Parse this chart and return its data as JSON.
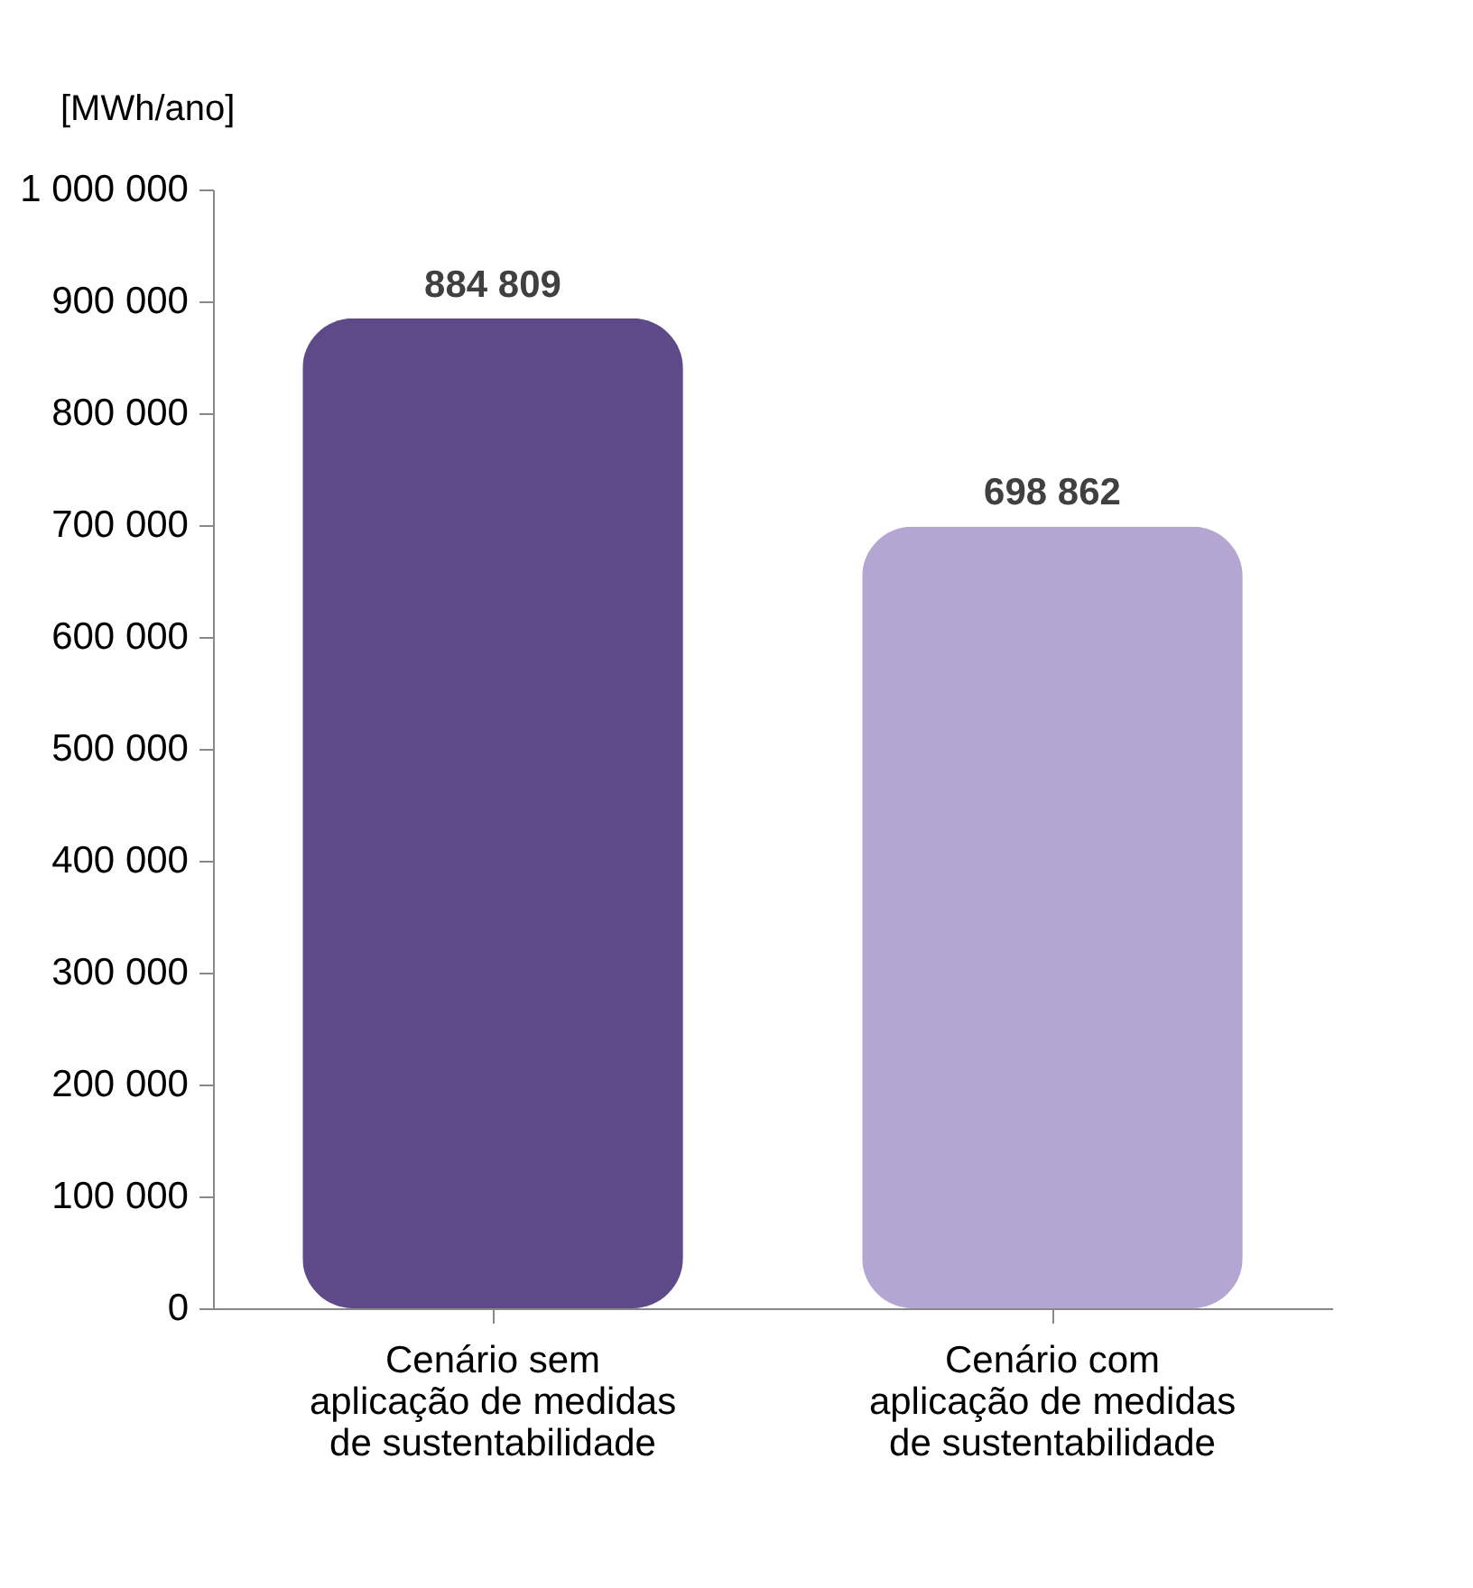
{
  "chart_data": {
    "type": "bar",
    "ylabel": "[MWh/ano]",
    "categories": [
      "Cenário sem aplicação de medidas de sustentabilidade",
      "Cenário com aplicação de medidas de sustentabilidade"
    ],
    "values": [
      884809,
      698862
    ],
    "colors": [
      "#5e4a88",
      "#b4a5d3"
    ],
    "value_labels": [
      "884 809",
      "698 862"
    ],
    "ylim": [
      0,
      1000000
    ],
    "yticks": [
      {
        "value": 0,
        "label": "0"
      },
      {
        "value": 100000,
        "label": "100 000"
      },
      {
        "value": 200000,
        "label": "200 000"
      },
      {
        "value": 300000,
        "label": "300 000"
      },
      {
        "value": 400000,
        "label": "400 000"
      },
      {
        "value": 500000,
        "label": "500 000"
      },
      {
        "value": 600000,
        "label": "600 000"
      },
      {
        "value": 700000,
        "label": "700 000"
      },
      {
        "value": 800000,
        "label": "800 000"
      },
      {
        "value": 900000,
        "label": "900 000"
      },
      {
        "value": 1000000,
        "label": "1 000 000"
      }
    ],
    "grid": false
  }
}
